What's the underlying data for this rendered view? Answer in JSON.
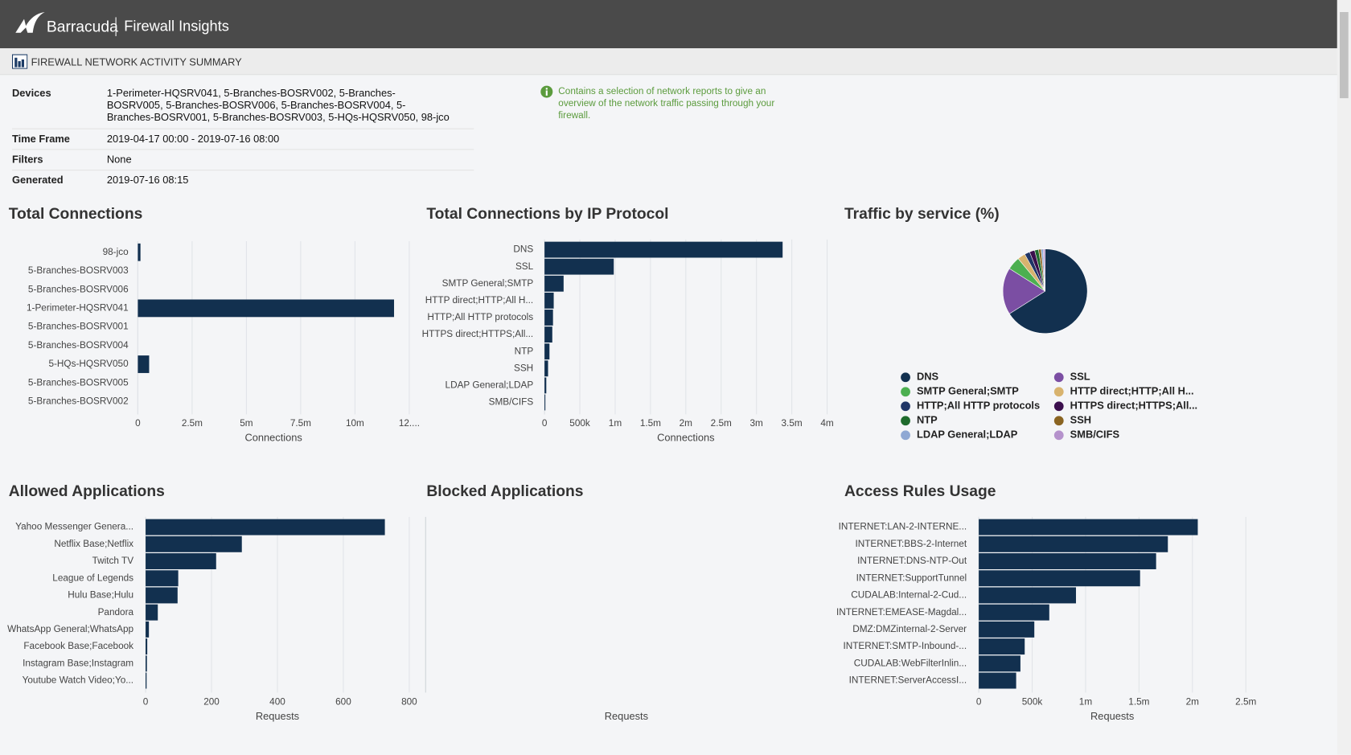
{
  "header": {
    "brand": "Barracuda",
    "product": "Firewall Insights"
  },
  "report": {
    "title": "FIREWALL NETWORK ACTIVITY SUMMARY",
    "info": [
      {
        "label": "Devices",
        "value": "1-Perimeter-HQSRV041, 5-Branches-BOSRV002, 5-Branches-BOSRV005, 5-Branches-BOSRV006, 5-Branches-BOSRV004, 5-Branches-BOSRV001, 5-Branches-BOSRV003, 5-HQs-HQSRV050, 98-jco"
      },
      {
        "label": "Time Frame",
        "value": "2019-04-17 00:00 - 2019-07-16 08:00"
      },
      {
        "label": "Filters",
        "value": "None"
      },
      {
        "label": "Generated",
        "value": "2019-07-16 08:15"
      }
    ],
    "note": "Contains a selection of network reports to give an overview of the network traffic passing through your firewall."
  },
  "chart_data": [
    {
      "type": "bar",
      "title": "Total Connections",
      "categories": [
        "98-jco",
        "5-Branches-BOSRV003",
        "5-Branches-BOSRV006",
        "1-Perimeter-HQSRV041",
        "5-Branches-BOSRV001",
        "5-Branches-BOSRV004",
        "5-HQs-HQSRV050",
        "5-Branches-BOSRV005",
        "5-Branches-BOSRV002"
      ],
      "values": [
        120000,
        0,
        0,
        11800000,
        0,
        0,
        520000,
        0,
        0
      ],
      "color": "#12304f",
      "xlim": [
        0,
        12500000
      ],
      "xticks": [
        0,
        {
          "value": 2500000,
          "label": "2.5m"
        },
        {
          "value": 5000000,
          "label": "5m"
        },
        {
          "value": 7500000,
          "label": "7.5m"
        },
        {
          "value": 10000000,
          "label": "10m"
        },
        {
          "value": 12500000,
          "label": "12...."
        }
      ],
      "xlabel": "Connections",
      "grid": true
    },
    {
      "type": "bar",
      "title": "Total Connections by IP Protocol",
      "categories": [
        "DNS",
        "SSL",
        "SMTP General;SMTP",
        "HTTP direct;HTTP;All H...",
        "HTTP;All HTTP protocols",
        "HTTPS direct;HTTPS;All...",
        "NTP",
        "SSH",
        "LDAP General;LDAP",
        "SMB/CIFS"
      ],
      "values": [
        3370000,
        980000,
        270000,
        130000,
        120000,
        110000,
        70000,
        50000,
        25000,
        12000
      ],
      "color": "#12304f",
      "xlim": [
        0,
        4000000
      ],
      "xticks": [
        0,
        {
          "value": 500000,
          "label": "500k"
        },
        {
          "value": 1000000,
          "label": "1m"
        },
        {
          "value": 1500000,
          "label": "1.5m"
        },
        {
          "value": 2000000,
          "label": "2m"
        },
        {
          "value": 2500000,
          "label": "2.5m"
        },
        {
          "value": 3000000,
          "label": "3m"
        },
        {
          "value": 3500000,
          "label": "3.5m"
        },
        {
          "value": 4000000,
          "label": "4m"
        }
      ],
      "xlabel": "Connections",
      "grid": true
    },
    {
      "type": "pie",
      "title": "Traffic by service (%)",
      "categories": [
        "DNS",
        "SSL",
        "SMTP General;SMTP",
        "HTTP direct;HTTP;All H...",
        "HTTP;All HTTP protocols",
        "HTTPS direct;HTTPS;All...",
        "NTP",
        "SSH",
        "LDAP General;LDAP",
        "SMB/CIFS"
      ],
      "values": [
        66,
        18,
        5,
        3,
        2,
        2,
        1.5,
        1,
        0.8,
        0.7
      ],
      "colors": [
        "#12304f",
        "#7b4ea3",
        "#4caf50",
        "#d8b36e",
        "#1f3566",
        "#3b0f4d",
        "#1f6b2d",
        "#8a6421",
        "#8fa8d3",
        "#b592cc"
      ],
      "legend": "bottom"
    },
    {
      "type": "bar",
      "title": "Allowed Applications",
      "categories": [
        "Yahoo Messenger Genera...",
        "Netflix Base;Netflix",
        "Twitch TV",
        "League of Legends",
        "Hulu Base;Hulu",
        "Pandora",
        "WhatsApp General;WhatsApp",
        "Facebook Base;Facebook",
        "Instagram Base;Instagram",
        "Youtube Watch Video;Yo..."
      ],
      "values": [
        726,
        292,
        214,
        99,
        97,
        37,
        10,
        5,
        4,
        3
      ],
      "color": "#12304f",
      "xlim": [
        0,
        800
      ],
      "xticks": [
        0,
        200,
        400,
        600,
        800
      ],
      "xlabel": "Requests",
      "grid": true
    },
    {
      "type": "bar",
      "title": "Blocked Applications",
      "categories": [],
      "values": [],
      "xlabel": "Requests"
    },
    {
      "type": "bar",
      "title": "Access Rules Usage",
      "categories": [
        "INTERNET:LAN-2-INTERNE...",
        "INTERNET:BBS-2-Internet",
        "INTERNET:DNS-NTP-Out",
        "INTERNET:SupportTunnel",
        "CUDALAB:Internal-2-Cud...",
        "INTERNET:EMEASE-Magdal...",
        "DMZ:DMZinternal-2-Server",
        "INTERNET:SMTP-Inbound-...",
        "CUDALAB:WebFilterInlin...",
        "INTERNET:ServerAccessI..."
      ],
      "values": [
        2050000,
        1770000,
        1660000,
        1510000,
        910000,
        660000,
        520000,
        430000,
        390000,
        350000
      ],
      "color": "#12304f",
      "xlim": [
        0,
        2500000
      ],
      "xticks": [
        0,
        {
          "value": 500000,
          "label": "500k"
        },
        {
          "value": 1000000,
          "label": "1m"
        },
        {
          "value": 1500000,
          "label": "1.5m"
        },
        {
          "value": 2000000,
          "label": "2m"
        },
        {
          "value": 2500000,
          "label": "2.5m"
        }
      ],
      "xlabel": "Requests",
      "grid": true
    }
  ]
}
